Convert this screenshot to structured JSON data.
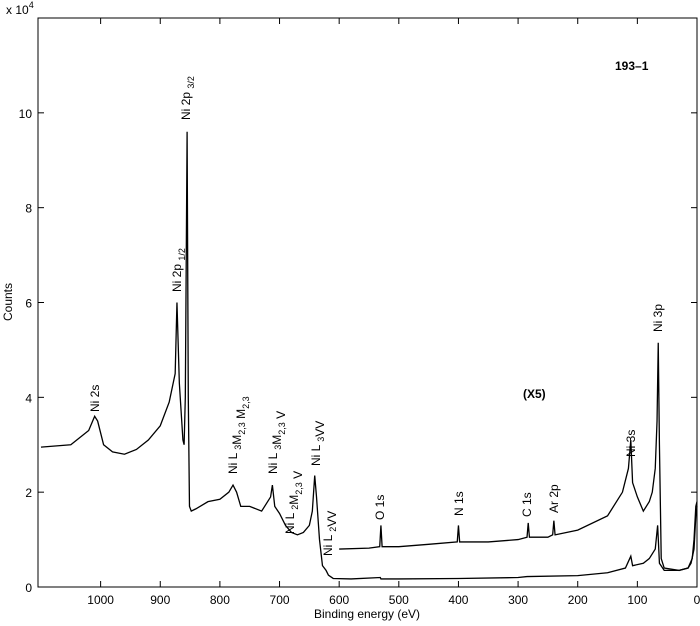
{
  "chart_data": {
    "type": "line",
    "x_label": "Binding energy (eV)",
    "y_label": "Counts",
    "y_multiplier": {
      "base": "x 10",
      "exponent": "4"
    },
    "sample_label": "193–1",
    "scale_label": "(X5)",
    "xlim": [
      1105,
      0
    ],
    "xticks": [
      1000,
      900,
      800,
      700,
      600,
      500,
      400,
      300,
      200,
      100,
      0
    ],
    "ylim": [
      0,
      12
    ],
    "yticks": [
      0,
      2,
      4,
      6,
      8,
      10
    ],
    "series": [
      {
        "color": "#000000",
        "x": [
          1100,
          1050,
          1020,
          1010,
          1005,
          995,
          980,
          960,
          940,
          920,
          900,
          885,
          875,
          872,
          868,
          862,
          860,
          858,
          855,
          853,
          851,
          848,
          840,
          820,
          800,
          785,
          778,
          772,
          765,
          750,
          730,
          715,
          712,
          708,
          700,
          690,
          680,
          670,
          660,
          650,
          645,
          641,
          638,
          633,
          628,
          622,
          618,
          610,
          580,
          531,
          530,
          500,
          400,
          300,
          285,
          200,
          150,
          120,
          111,
          108,
          90,
          80,
          70,
          66,
          63,
          55,
          30,
          15,
          8,
          5,
          2,
          0
        ],
        "values": [
          2.95,
          3.0,
          3.3,
          3.6,
          3.5,
          3.0,
          2.85,
          2.8,
          2.9,
          3.1,
          3.4,
          3.9,
          4.5,
          6.0,
          4.3,
          3.1,
          3.0,
          4.0,
          9.6,
          4.0,
          1.7,
          1.6,
          1.65,
          1.8,
          1.85,
          2.0,
          2.15,
          2.0,
          1.7,
          1.7,
          1.6,
          1.9,
          2.15,
          1.7,
          1.55,
          1.3,
          1.15,
          1.1,
          1.15,
          1.3,
          1.6,
          2.35,
          1.9,
          1.0,
          0.45,
          0.35,
          0.25,
          0.18,
          0.17,
          0.2,
          0.17,
          0.17,
          0.18,
          0.2,
          0.22,
          0.24,
          0.3,
          0.4,
          0.65,
          0.45,
          0.5,
          0.6,
          0.8,
          1.3,
          0.5,
          0.35,
          0.35,
          0.4,
          0.6,
          1.0,
          1.7,
          1.8
        ]
      },
      {
        "color": "#000000",
        "x": [
          600,
          550,
          532,
          530,
          528,
          500,
          450,
          402,
          400,
          398,
          350,
          300,
          285,
          283,
          281,
          250,
          242,
          240,
          238,
          200,
          150,
          125,
          115,
          111,
          108,
          100,
          90,
          80,
          75,
          70,
          67,
          65,
          63,
          60,
          55,
          30,
          15,
          10,
          5,
          2,
          0
        ],
        "values": [
          0.8,
          0.82,
          0.85,
          1.3,
          0.85,
          0.85,
          0.9,
          0.95,
          1.3,
          0.95,
          0.95,
          1.0,
          1.05,
          1.35,
          1.05,
          1.05,
          1.1,
          1.4,
          1.1,
          1.2,
          1.5,
          2.0,
          2.5,
          3.1,
          2.2,
          1.9,
          1.6,
          1.8,
          2.0,
          2.5,
          3.5,
          5.15,
          3.0,
          0.6,
          0.4,
          0.35,
          0.4,
          0.5,
          0.8,
          1.5,
          1.7
        ]
      }
    ],
    "annotations": [
      [
        {
          "text": "Ni 2s"
        }
      ],
      [
        {
          "text": "Ni 2p "
        },
        {
          "sub": "3/2"
        }
      ],
      [
        {
          "text": "Ni 2p "
        },
        {
          "sub": "1/2"
        }
      ],
      [
        {
          "text": "Ni L "
        },
        {
          "sub": "3"
        },
        {
          "text": "M"
        },
        {
          "sub": "2,3"
        },
        {
          "text": " M"
        },
        {
          "sub": "2,3"
        }
      ],
      [
        {
          "text": "Ni L "
        },
        {
          "sub": "3"
        },
        {
          "text": "M"
        },
        {
          "sub": "2,3"
        },
        {
          "text": " V"
        }
      ],
      [
        {
          "text": "Ni L "
        },
        {
          "sub": "2"
        },
        {
          "text": "M"
        },
        {
          "sub": "2,3"
        },
        {
          "text": " V"
        }
      ],
      [
        {
          "text": "Ni L "
        },
        {
          "sub": "3"
        },
        {
          "text": "VV"
        }
      ],
      [
        {
          "text": "Ni L "
        },
        {
          "sub": "2"
        },
        {
          "text": "VV"
        }
      ],
      [
        {
          "text": "O 1s"
        }
      ],
      [
        {
          "text": "N 1s"
        }
      ],
      [
        {
          "text": "C 1s"
        }
      ],
      [
        {
          "text": "Ar 2p"
        }
      ],
      [
        {
          "text": "Ni 3s"
        }
      ],
      [
        {
          "text": "Ni 3p"
        }
      ]
    ]
  }
}
